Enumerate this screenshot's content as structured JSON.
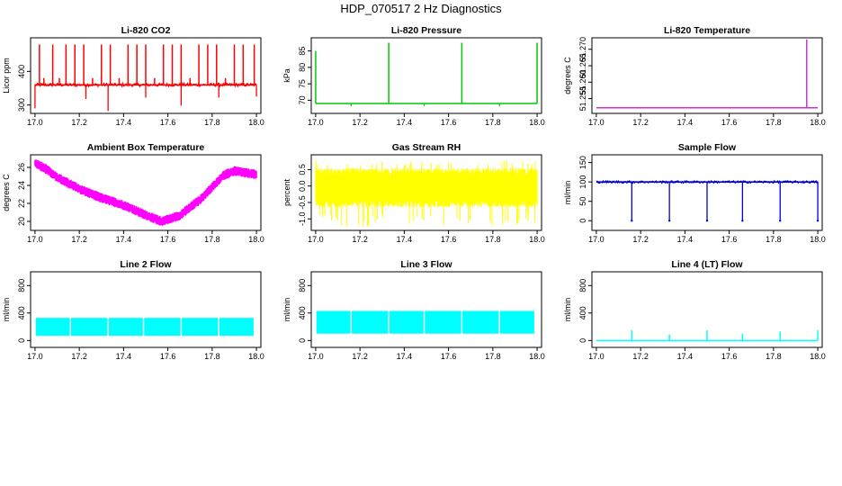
{
  "figure": {
    "title": "HDP_070517  2 Hz Diagnostics"
  },
  "chart_data": [
    {
      "id": "co2",
      "type": "line",
      "title": "Li-820 CO2",
      "xlabel": "",
      "ylabel": "Licor ppm",
      "color": "#ff0000",
      "xlim": [
        16.98,
        18.02
      ],
      "ylim": [
        275,
        500
      ],
      "xticks": [
        "17.0",
        "17.2",
        "17.4",
        "17.6",
        "17.8",
        "18.0"
      ],
      "yticks": [
        "300",
        "400"
      ],
      "baseline": 360,
      "noise_band": [
        355,
        365
      ],
      "spikes": [
        {
          "x": 17.02,
          "y": 480
        },
        {
          "x": 17.04,
          "y": 380
        },
        {
          "x": 17.08,
          "y": 480
        },
        {
          "x": 17.11,
          "y": 380
        },
        {
          "x": 17.14,
          "y": 480
        },
        {
          "x": 17.18,
          "y": 480
        },
        {
          "x": 17.22,
          "y": 480
        },
        {
          "x": 17.26,
          "y": 380
        },
        {
          "x": 17.3,
          "y": 480
        },
        {
          "x": 17.34,
          "y": 480
        },
        {
          "x": 17.38,
          "y": 380
        },
        {
          "x": 17.42,
          "y": 480
        },
        {
          "x": 17.46,
          "y": 480
        },
        {
          "x": 17.5,
          "y": 480
        },
        {
          "x": 17.54,
          "y": 380
        },
        {
          "x": 17.58,
          "y": 480
        },
        {
          "x": 17.62,
          "y": 480
        },
        {
          "x": 17.66,
          "y": 480
        },
        {
          "x": 17.7,
          "y": 380
        },
        {
          "x": 17.74,
          "y": 480
        },
        {
          "x": 17.78,
          "y": 480
        },
        {
          "x": 17.82,
          "y": 480
        },
        {
          "x": 17.86,
          "y": 380
        },
        {
          "x": 17.9,
          "y": 480
        },
        {
          "x": 17.94,
          "y": 480
        },
        {
          "x": 17.99,
          "y": 480
        }
      ],
      "dips": [
        {
          "x": 17.0,
          "y": 290
        },
        {
          "x": 17.23,
          "y": 318
        },
        {
          "x": 17.33,
          "y": 282
        },
        {
          "x": 17.5,
          "y": 322
        },
        {
          "x": 17.66,
          "y": 298
        },
        {
          "x": 17.83,
          "y": 322
        },
        {
          "x": 18.0,
          "y": 325
        }
      ]
    },
    {
      "id": "pressure",
      "type": "line",
      "title": "Li-820 Pressure",
      "xlabel": "",
      "ylabel": "kPa",
      "color": "#00cc00",
      "xlim": [
        16.98,
        18.02
      ],
      "ylim": [
        66,
        89
      ],
      "xticks": [
        "17.0",
        "17.2",
        "17.4",
        "17.6",
        "17.8",
        "18.0"
      ],
      "yticks": [
        "70",
        "75",
        "80",
        "85"
      ],
      "baseline": 69.0,
      "spikes": [
        {
          "x": 17.0,
          "y": 85
        },
        {
          "x": 17.33,
          "y": 87.5
        },
        {
          "x": 17.66,
          "y": 87.5
        },
        {
          "x": 18.0,
          "y": 87.5
        }
      ],
      "small_marks": [
        {
          "x": 17.16,
          "y": 68.2
        },
        {
          "x": 17.49,
          "y": 68.2
        },
        {
          "x": 17.83,
          "y": 68.2
        }
      ]
    },
    {
      "id": "temperature",
      "type": "line",
      "title": "Li-820 Temperature",
      "xlabel": "",
      "ylabel": "degrees C",
      "color": "#cc33cc",
      "xlim": [
        16.98,
        18.02
      ],
      "ylim": [
        51.2505,
        51.2735
      ],
      "xticks": [
        "17.0",
        "17.2",
        "17.4",
        "17.6",
        "17.8",
        "18.0"
      ],
      "yticks": [
        "51.255",
        "51.260",
        "51.265",
        "51.270"
      ],
      "baseline": 51.2522,
      "spikes": [
        {
          "x": 17.95,
          "y": 51.273
        }
      ]
    },
    {
      "id": "ambient",
      "type": "line",
      "title": "Ambient Box Temperature",
      "xlabel": "",
      "ylabel": "degrees C",
      "color": "#ff00ff",
      "xlim": [
        16.98,
        18.02
      ],
      "ylim": [
        19,
        27.4
      ],
      "xticks": [
        "17.0",
        "17.2",
        "17.4",
        "17.6",
        "17.8",
        "18.0"
      ],
      "yticks": [
        "20",
        "22",
        "24",
        "26"
      ],
      "curve": [
        {
          "x": 17.0,
          "y": 26.5
        },
        {
          "x": 17.05,
          "y": 25.8
        },
        {
          "x": 17.1,
          "y": 24.9
        },
        {
          "x": 17.2,
          "y": 23.6
        },
        {
          "x": 17.3,
          "y": 22.6
        },
        {
          "x": 17.4,
          "y": 21.8
        },
        {
          "x": 17.5,
          "y": 20.7
        },
        {
          "x": 17.57,
          "y": 20.0
        },
        {
          "x": 17.65,
          "y": 20.6
        },
        {
          "x": 17.75,
          "y": 22.5
        },
        {
          "x": 17.85,
          "y": 25.1
        },
        {
          "x": 17.9,
          "y": 25.6
        },
        {
          "x": 18.0,
          "y": 25.2
        }
      ],
      "band_half_width": 0.55
    },
    {
      "id": "rh",
      "type": "line",
      "title": "Gas Stream RH",
      "xlabel": "",
      "ylabel": "percent",
      "color": "#ffff00",
      "xlim": [
        16.98,
        18.02
      ],
      "ylim": [
        -1.35,
        0.95
      ],
      "xticks": [
        "17.0",
        "17.2",
        "17.4",
        "17.6",
        "17.8",
        "18.0"
      ],
      "yticks": [
        "-1.0",
        "-0.5",
        "0.0",
        "0.5"
      ],
      "noise_band": [
        -0.65,
        0.55
      ],
      "noise_extremes": [
        -1.25,
        0.78
      ]
    },
    {
      "id": "sample",
      "type": "line",
      "title": "Sample Flow",
      "xlabel": "",
      "ylabel": "ml/min",
      "color": "#0000dd",
      "xlim": [
        16.98,
        18.02
      ],
      "ylim": [
        -25,
        170
      ],
      "xticks": [
        "17.0",
        "17.2",
        "17.4",
        "17.6",
        "17.8",
        "18.0"
      ],
      "yticks": [
        "0",
        "50",
        "100",
        "150"
      ],
      "baseline": 100,
      "noise_band": [
        97,
        103
      ],
      "dips": [
        {
          "x": 17.16,
          "y": 0
        },
        {
          "x": 17.33,
          "y": 0
        },
        {
          "x": 17.5,
          "y": 0
        },
        {
          "x": 17.66,
          "y": 0
        },
        {
          "x": 17.83,
          "y": 0
        },
        {
          "x": 18.0,
          "y": 0
        }
      ]
    },
    {
      "id": "line2",
      "type": "area",
      "title": "Line 2 Flow",
      "xlabel": "",
      "ylabel": "ml/min",
      "color": "#00ffff",
      "xlim": [
        16.98,
        18.02
      ],
      "ylim": [
        -100,
        1000
      ],
      "xticks": [
        "17.0",
        "17.2",
        "17.4",
        "17.6",
        "17.8",
        "18.0"
      ],
      "yticks": [
        "0",
        "400",
        "800"
      ],
      "band": [
        70,
        330
      ],
      "gaps": [
        17.0,
        17.16,
        17.33,
        17.49,
        17.66,
        17.83,
        17.99
      ]
    },
    {
      "id": "line3",
      "type": "area",
      "title": "Line 3 Flow",
      "xlabel": "",
      "ylabel": "ml/min",
      "color": "#00ffff",
      "xlim": [
        16.98,
        18.02
      ],
      "ylim": [
        -100,
        1000
      ],
      "xticks": [
        "17.0",
        "17.2",
        "17.4",
        "17.6",
        "17.8",
        "18.0"
      ],
      "yticks": [
        "0",
        "400",
        "800"
      ],
      "band": [
        100,
        430
      ],
      "gaps": [
        17.0,
        17.16,
        17.33,
        17.49,
        17.66,
        17.83,
        17.99
      ]
    },
    {
      "id": "line4",
      "type": "line",
      "title": "Line 4 (LT) Flow",
      "xlabel": "",
      "ylabel": "ml/min",
      "color": "#00ffff",
      "xlim": [
        16.98,
        18.02
      ],
      "ylim": [
        -100,
        1000
      ],
      "xticks": [
        "17.0",
        "17.2",
        "17.4",
        "17.6",
        "17.8",
        "18.0"
      ],
      "yticks": [
        "0",
        "400",
        "800"
      ],
      "baseline": 0,
      "spikes": [
        {
          "x": 17.16,
          "y": 150
        },
        {
          "x": 17.33,
          "y": 90
        },
        {
          "x": 17.5,
          "y": 150
        },
        {
          "x": 17.66,
          "y": 100
        },
        {
          "x": 17.83,
          "y": 130
        },
        {
          "x": 18.0,
          "y": 150
        }
      ]
    }
  ]
}
